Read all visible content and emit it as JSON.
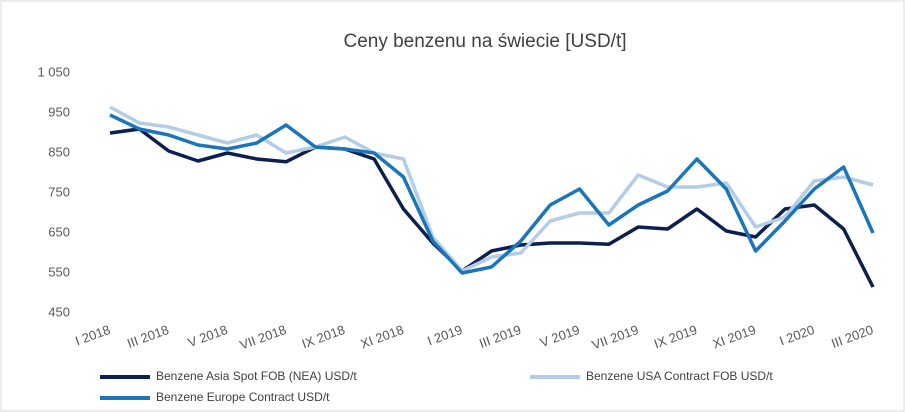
{
  "chart_data": {
    "type": "line",
    "title": "Ceny benzenu na świecie [USD/t]",
    "categories": [
      "I 2018",
      null,
      "III 2018",
      null,
      "V 2018",
      null,
      "VII 2018",
      null,
      "IX 2018",
      null,
      "XI 2018",
      null,
      "I 2019",
      null,
      "III 2019",
      null,
      "V 2019",
      null,
      "VII 2019",
      null,
      "IX 2019",
      null,
      "XI 2019",
      null,
      "I 2020",
      null,
      "III 2020"
    ],
    "series": [
      {
        "name": "Benzene Asia Spot FOB (NEA) USD/t",
        "color": "#0d1f4f",
        "values": [
          900,
          910,
          855,
          830,
          850,
          835,
          828,
          865,
          860,
          835,
          710,
          625,
          555,
          605,
          620,
          625,
          625,
          622,
          665,
          660,
          710,
          655,
          640,
          710,
          720,
          660,
          515
        ]
      },
      {
        "name": "Benzene USA Contract FOB USD/t",
        "color": "#b4cde6",
        "values": [
          965,
          925,
          915,
          895,
          875,
          895,
          850,
          865,
          890,
          850,
          835,
          640,
          555,
          590,
          600,
          680,
          700,
          700,
          795,
          765,
          765,
          775,
          665,
          690,
          780,
          790,
          770
        ]
      },
      {
        "name": "Benzene Europe Contract USD/t",
        "color": "#1a75bb",
        "values": [
          945,
          910,
          895,
          870,
          860,
          875,
          920,
          865,
          860,
          850,
          790,
          630,
          550,
          565,
          630,
          720,
          760,
          670,
          720,
          755,
          835,
          760,
          605,
          680,
          760,
          815,
          650
        ]
      }
    ],
    "ylim": [
      450,
      1050
    ],
    "yticks": [
      450,
      550,
      650,
      750,
      850,
      950,
      {
        "value": 1050,
        "label": "1 050"
      }
    ]
  }
}
